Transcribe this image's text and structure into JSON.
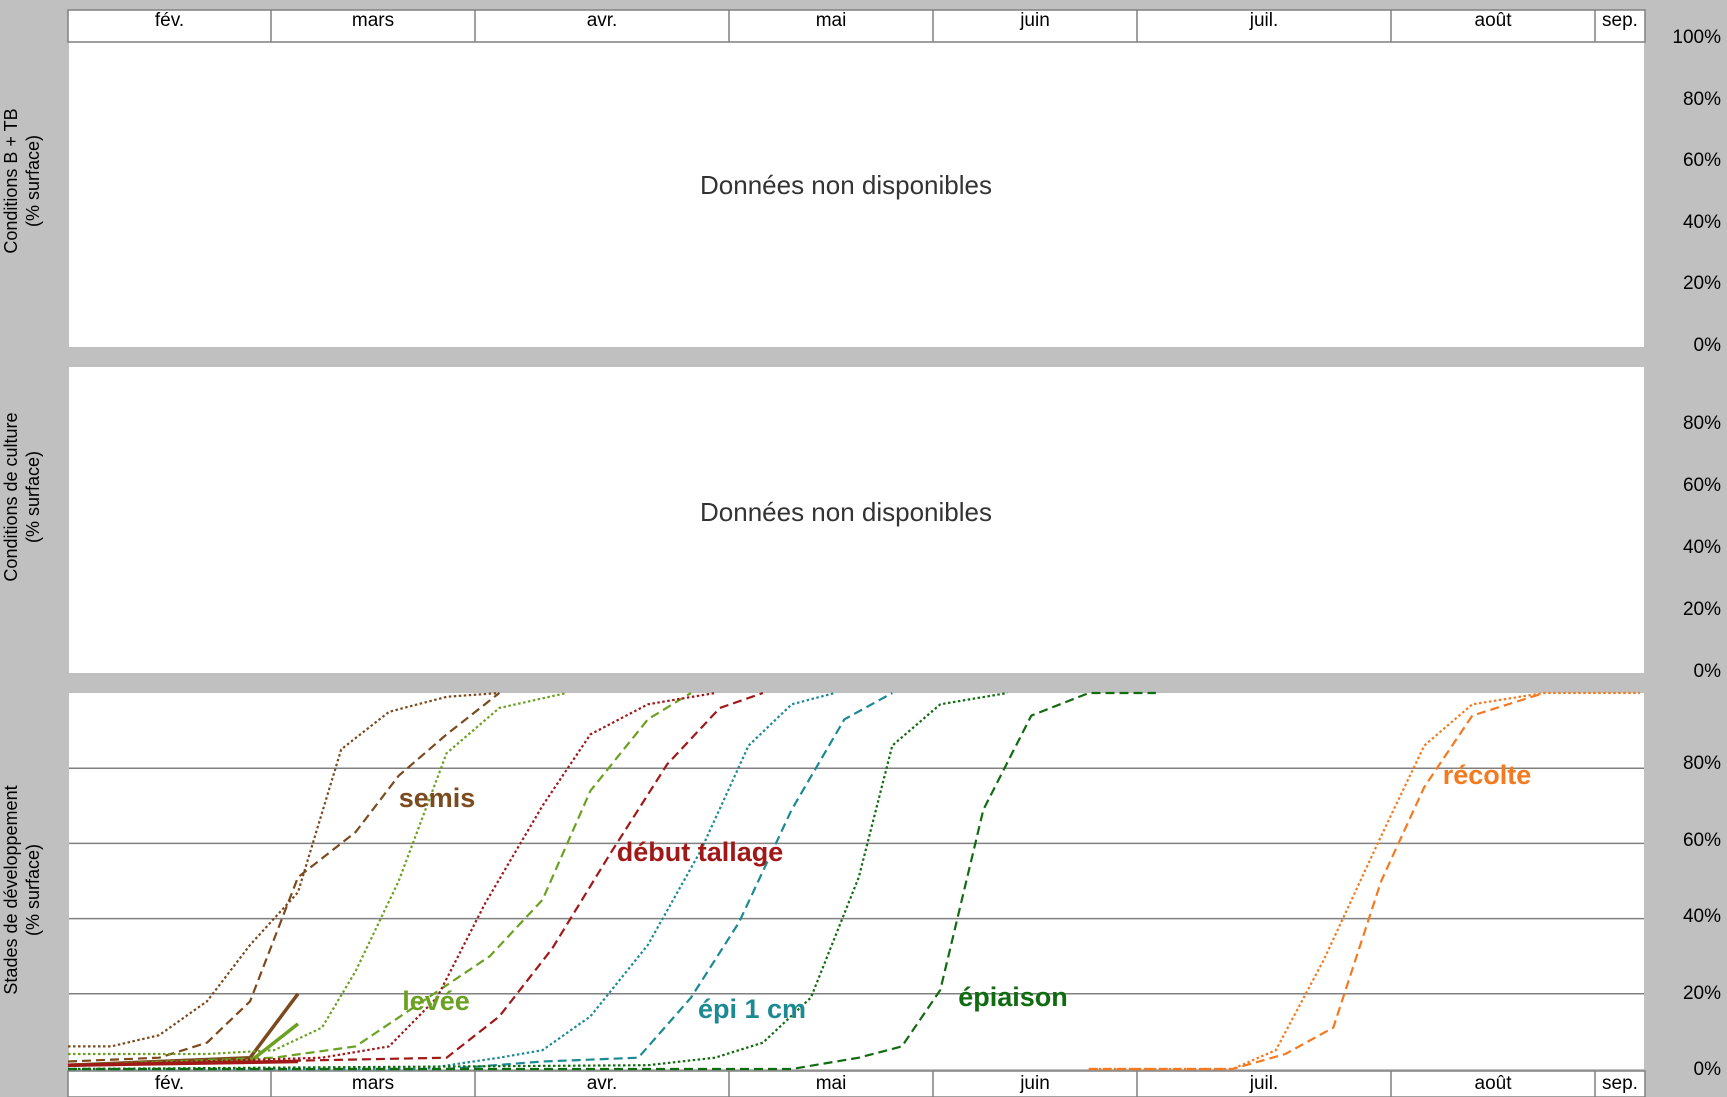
{
  "months": [
    "fév.",
    "mars",
    "avr.",
    "mai",
    "juin",
    "juil.",
    "août",
    "sep."
  ],
  "panels": {
    "top": {
      "ylabel_line1": "Conditions B + TB",
      "ylabel_line2": "(% surface)",
      "message": "Données non disponibles",
      "ticks": [
        "100%",
        "80%",
        "60%",
        "40%",
        "20%",
        "0%"
      ]
    },
    "middle": {
      "ylabel_line1": "Conditions de culture",
      "ylabel_line2": "(% surface)",
      "message": "Données non disponibles",
      "ticks": [
        "80%",
        "60%",
        "40%",
        "20%",
        "0%"
      ]
    },
    "bottom": {
      "ylabel_line1": "Stades de développement",
      "ylabel_line2": "(% surface)",
      "ticks": [
        "80%",
        "60%",
        "40%",
        "20%",
        "0%"
      ]
    }
  },
  "chart_data": {
    "type": "line",
    "ylabel": "Stades de développement (% surface)",
    "ylim": [
      0,
      100
    ],
    "grid": true,
    "x_axis": [
      "fév.",
      "mars",
      "avr.",
      "mai",
      "juin",
      "juil.",
      "août",
      "sep."
    ],
    "series": [
      {
        "name": "semis",
        "style": "dotted",
        "color": "#7b4a1e",
        "points": [
          [
            "2024-02-01",
            6
          ],
          [
            "2024-02-10",
            6
          ],
          [
            "2024-02-20",
            9
          ],
          [
            "2024-03-01",
            18
          ],
          [
            "2024-03-10",
            33
          ],
          [
            "2024-03-20",
            47
          ],
          [
            "2024-03-29",
            85
          ],
          [
            "2024-04-08",
            95
          ],
          [
            "2024-04-20",
            99
          ],
          [
            "2024-05-01",
            100
          ]
        ]
      },
      {
        "name": "semis",
        "style": "dashed",
        "color": "#7b4a1e",
        "points": [
          [
            "2024-02-01",
            2
          ],
          [
            "2024-02-20",
            3
          ],
          [
            "2024-03-01",
            7
          ],
          [
            "2024-03-10",
            18
          ],
          [
            "2024-03-20",
            51
          ],
          [
            "2024-04-01",
            63
          ],
          [
            "2024-04-10",
            78
          ],
          [
            "2024-04-20",
            89
          ],
          [
            "2024-05-01",
            100
          ]
        ]
      },
      {
        "name": "semis",
        "style": "solid",
        "color": "#7b4a1e",
        "points": [
          [
            "2024-02-01",
            1
          ],
          [
            "2024-03-10",
            3
          ],
          [
            "2024-03-20",
            20
          ]
        ]
      },
      {
        "name": "levée",
        "style": "dotted",
        "color": "#6aa121",
        "points": [
          [
            "2024-02-01",
            4
          ],
          [
            "2024-03-01",
            4
          ],
          [
            "2024-03-15",
            5
          ],
          [
            "2024-03-25",
            11
          ],
          [
            "2024-04-01",
            26
          ],
          [
            "2024-04-10",
            50
          ],
          [
            "2024-04-20",
            84
          ],
          [
            "2024-05-01",
            96
          ],
          [
            "2024-05-15",
            100
          ]
        ]
      },
      {
        "name": "levée",
        "style": "dashed",
        "color": "#6aa121",
        "points": [
          [
            "2024-02-01",
            1
          ],
          [
            "2024-03-15",
            3
          ],
          [
            "2024-04-01",
            6
          ],
          [
            "2024-04-15",
            18
          ],
          [
            "2024-04-29",
            30
          ],
          [
            "2024-05-10",
            45
          ],
          [
            "2024-05-20",
            74
          ],
          [
            "2024-06-01",
            93
          ],
          [
            "2024-06-10",
            100
          ]
        ]
      },
      {
        "name": "levée",
        "style": "solid",
        "color": "#6aa121",
        "points": [
          [
            "2024-02-01",
            1
          ],
          [
            "2024-03-10",
            2
          ],
          [
            "2024-03-20",
            12
          ]
        ]
      },
      {
        "name": "début tallage",
        "style": "dotted",
        "color": "#a01818",
        "points": [
          [
            "2024-02-01",
            1
          ],
          [
            "2024-03-25",
            3
          ],
          [
            "2024-04-08",
            6
          ],
          [
            "2024-04-18",
            19
          ],
          [
            "2024-04-28",
            44
          ],
          [
            "2024-05-10",
            70
          ],
          [
            "2024-05-20",
            89
          ],
          [
            "2024-06-01",
            97
          ],
          [
            "2024-06-15",
            100
          ]
        ]
      },
      {
        "name": "début tallage",
        "style": "dashed",
        "color": "#a01818",
        "points": [
          [
            "2024-02-01",
            1
          ],
          [
            "2024-04-20",
            3
          ],
          [
            "2024-05-01",
            14
          ],
          [
            "2024-05-12",
            32
          ],
          [
            "2024-05-24",
            57
          ],
          [
            "2024-06-05",
            81
          ],
          [
            "2024-06-16",
            96
          ],
          [
            "2024-06-25",
            100
          ]
        ]
      },
      {
        "name": "début tallage",
        "style": "solid",
        "color": "#a01818",
        "points": [
          [
            "2024-02-01",
            1
          ],
          [
            "2024-03-20",
            2
          ]
        ]
      },
      {
        "name": "épi 1 cm",
        "style": "dotted",
        "color": "#1b8a93",
        "points": [
          [
            "2024-02-01",
            0
          ],
          [
            "2024-04-15",
            0
          ],
          [
            "2024-05-01",
            3
          ],
          [
            "2024-05-10",
            5
          ],
          [
            "2024-05-20",
            14
          ],
          [
            "2024-06-01",
            33
          ],
          [
            "2024-06-12",
            58
          ],
          [
            "2024-06-22",
            86
          ],
          [
            "2024-07-01",
            97
          ],
          [
            "2024-07-10",
            100
          ]
        ]
      },
      {
        "name": "épi 1 cm",
        "style": "dashed",
        "color": "#1b8a93",
        "points": [
          [
            "2024-02-01",
            0
          ],
          [
            "2024-04-20",
            0
          ],
          [
            "2024-05-10",
            2
          ],
          [
            "2024-05-30",
            3
          ],
          [
            "2024-06-10",
            19
          ],
          [
            "2024-06-20",
            39
          ],
          [
            "2024-07-01",
            69
          ],
          [
            "2024-07-12",
            93
          ],
          [
            "2024-07-22",
            100
          ]
        ]
      },
      {
        "name": "épiaison",
        "style": "dotted",
        "color": "#116b11",
        "points": [
          [
            "2024-02-01",
            0
          ],
          [
            "2024-06-01",
            1
          ],
          [
            "2024-06-15",
            3
          ],
          [
            "2024-06-25",
            7
          ],
          [
            "2024-07-05",
            19
          ],
          [
            "2024-07-15",
            51
          ],
          [
            "2024-07-22",
            86
          ],
          [
            "2024-08-01",
            97
          ],
          [
            "2024-08-15",
            100
          ]
        ]
      },
      {
        "name": "épiaison",
        "style": "dashed",
        "color": "#116b11",
        "points": [
          [
            "2024-02-01",
            0
          ],
          [
            "2024-07-01",
            0
          ],
          [
            "2024-07-15",
            3
          ],
          [
            "2024-07-24",
            6
          ],
          [
            "2024-08-01",
            21
          ],
          [
            "2024-08-10",
            69
          ],
          [
            "2024-08-20",
            94
          ],
          [
            "2024-09-01",
            100
          ],
          [
            "2024-09-15",
            100
          ]
        ]
      },
      {
        "name": "récolte",
        "style": "dotted",
        "color": "#f47a20",
        "points": [
          [
            "2024-09-01",
            0
          ],
          [
            "2024-10-01",
            0
          ],
          [
            "2024-10-10",
            5
          ],
          [
            "2024-10-20",
            29
          ],
          [
            "2024-11-01",
            62
          ],
          [
            "2024-11-10",
            86
          ],
          [
            "2024-11-20",
            97
          ],
          [
            "2024-12-05",
            100
          ],
          [
            "2024-12-25",
            100
          ]
        ]
      },
      {
        "name": "récolte",
        "style": "dashed",
        "color": "#f47a20",
        "points": [
          [
            "2024-09-01",
            0
          ],
          [
            "2024-10-01",
            0
          ],
          [
            "2024-10-12",
            4
          ],
          [
            "2024-10-22",
            11
          ],
          [
            "2024-11-01",
            50
          ],
          [
            "2024-11-10",
            75
          ],
          [
            "2024-11-20",
            94
          ],
          [
            "2024-12-05",
            100
          ]
        ]
      }
    ],
    "annotations": [
      {
        "text": "semis",
        "color": "#7b4a1e"
      },
      {
        "text": "levée",
        "color": "#6aa121"
      },
      {
        "text": "début tallage",
        "color": "#a01818"
      },
      {
        "text": "épi 1 cm",
        "color": "#1b8a93"
      },
      {
        "text": "épiaison",
        "color": "#116b11"
      },
      {
        "text": "récolte",
        "color": "#f47a20"
      }
    ]
  }
}
